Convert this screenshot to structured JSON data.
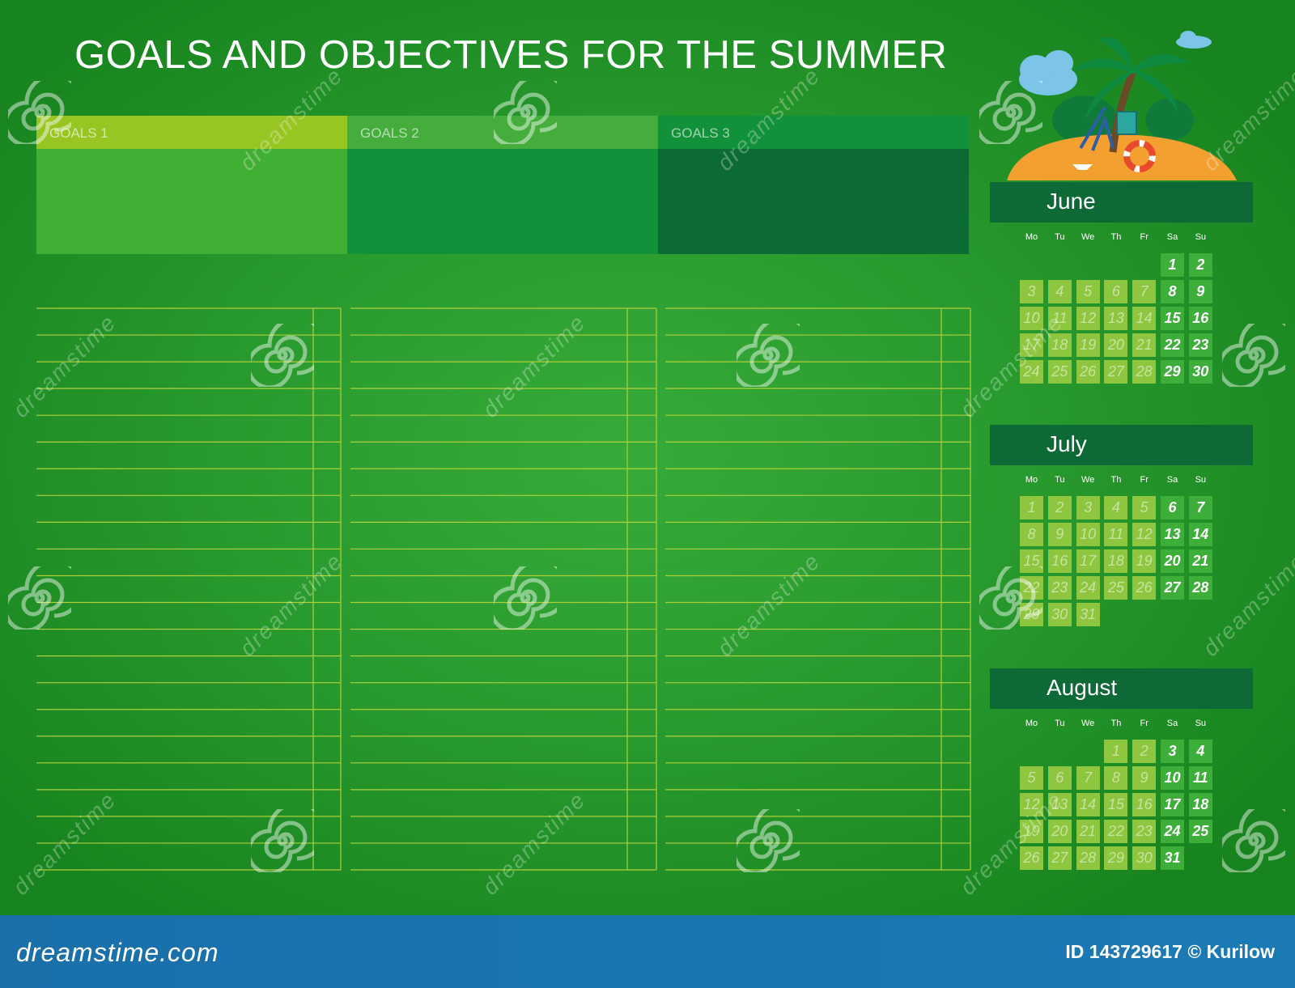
{
  "title": "GOALS AND OBJECTIVES FOR THE SUMMER",
  "goals": [
    {
      "label": "GOALS 1",
      "head_color": "#97c623",
      "body_color": "#41ae34"
    },
    {
      "label": "GOALS 2",
      "head_color": "#44ad3c",
      "body_color": "#11913a"
    },
    {
      "label": "GOALS 3",
      "head_color": "#11913a",
      "body_color": "#0c6b35"
    }
  ],
  "sheets": {
    "rows": 21,
    "line_color": "#aed03a"
  },
  "weekday_labels": [
    "Mo",
    "Tu",
    "We",
    "Th",
    "Fr",
    "Sa",
    "Su"
  ],
  "calendars": [
    {
      "month": "June",
      "first_weekday": 5,
      "days": 30
    },
    {
      "month": "July",
      "first_weekday": 0,
      "days": 31
    },
    {
      "month": "August",
      "first_weekday": 3,
      "days": 31
    }
  ],
  "watermark": {
    "text": "dreamstime"
  },
  "footer": {
    "logo": "dreamstime.com",
    "id_text": "ID 143729617 © Kurilow"
  },
  "colors": {
    "background": "#2a9c2f",
    "calendar_bar": "#0d6a36",
    "weekday_cell": "#8ec63f",
    "weekend_cell": "#3dae3a",
    "footer": "#1b75b1"
  }
}
